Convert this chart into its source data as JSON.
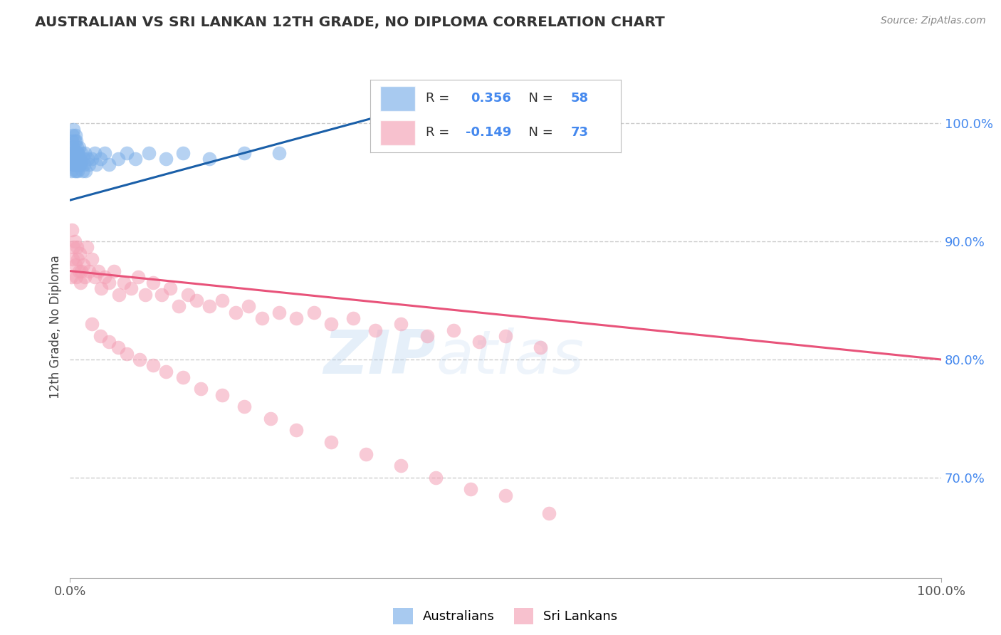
{
  "title": "AUSTRALIAN VS SRI LANKAN 12TH GRADE, NO DIPLOMA CORRELATION CHART",
  "source": "Source: ZipAtlas.com",
  "ylabel": "12th Grade, No Diploma",
  "xlim": [
    0.0,
    1.0
  ],
  "ylim": [
    0.615,
    1.04
  ],
  "yticks": [
    0.7,
    0.8,
    0.9,
    1.0
  ],
  "ytick_labels": [
    "70.0%",
    "80.0%",
    "90.0%",
    "100.0%"
  ],
  "xticks": [
    0.0,
    1.0
  ],
  "xtick_labels": [
    "0.0%",
    "100.0%"
  ],
  "grid_color": "#cccccc",
  "background_color": "#ffffff",
  "australian_color": "#7aaee8",
  "srilanka_color": "#f4a0b5",
  "australian_line_color": "#1a5fa8",
  "srilanka_line_color": "#e8537a",
  "R_australian": 0.356,
  "N_australian": 58,
  "R_srilanka": -0.149,
  "N_srilanka": 73,
  "watermark_zip": "ZIP",
  "watermark_atlas": "atlas",
  "aus_line_x0": 0.0,
  "aus_line_y0": 0.935,
  "aus_line_x1": 0.35,
  "aus_line_y1": 1.005,
  "slk_line_x0": 0.0,
  "slk_line_y0": 0.875,
  "slk_line_x1": 1.0,
  "slk_line_y1": 0.8,
  "australian_x": [
    0.001,
    0.002,
    0.002,
    0.003,
    0.003,
    0.004,
    0.004,
    0.004,
    0.005,
    0.005,
    0.005,
    0.006,
    0.006,
    0.006,
    0.007,
    0.007,
    0.007,
    0.008,
    0.008,
    0.009,
    0.009,
    0.01,
    0.01,
    0.011,
    0.012,
    0.013,
    0.014,
    0.015,
    0.016,
    0.017,
    0.018,
    0.02,
    0.022,
    0.025,
    0.028,
    0.03,
    0.035,
    0.04,
    0.045,
    0.055,
    0.065,
    0.075,
    0.09,
    0.11,
    0.13,
    0.16,
    0.2,
    0.24,
    0.001,
    0.002,
    0.003,
    0.004,
    0.005,
    0.006,
    0.007,
    0.008,
    0.009,
    0.01
  ],
  "australian_y": [
    0.96,
    0.975,
    0.985,
    0.97,
    0.99,
    0.965,
    0.98,
    0.995,
    0.96,
    0.975,
    0.985,
    0.965,
    0.975,
    0.99,
    0.96,
    0.975,
    0.985,
    0.965,
    0.98,
    0.96,
    0.975,
    0.965,
    0.98,
    0.97,
    0.965,
    0.975,
    0.96,
    0.97,
    0.965,
    0.975,
    0.96,
    0.97,
    0.965,
    0.97,
    0.975,
    0.965,
    0.97,
    0.975,
    0.965,
    0.97,
    0.975,
    0.97,
    0.975,
    0.97,
    0.975,
    0.97,
    0.975,
    0.975,
    0.97,
    0.98,
    0.975,
    0.965,
    0.97,
    0.975,
    0.965,
    0.97,
    0.975,
    0.965
  ],
  "srilanka_x": [
    0.001,
    0.002,
    0.003,
    0.004,
    0.005,
    0.006,
    0.007,
    0.008,
    0.009,
    0.01,
    0.011,
    0.012,
    0.013,
    0.015,
    0.017,
    0.019,
    0.022,
    0.025,
    0.028,
    0.032,
    0.036,
    0.04,
    0.045,
    0.05,
    0.056,
    0.062,
    0.07,
    0.078,
    0.086,
    0.095,
    0.105,
    0.115,
    0.125,
    0.135,
    0.145,
    0.16,
    0.175,
    0.19,
    0.205,
    0.22,
    0.24,
    0.26,
    0.28,
    0.3,
    0.325,
    0.35,
    0.38,
    0.41,
    0.44,
    0.47,
    0.5,
    0.54,
    0.025,
    0.035,
    0.045,
    0.055,
    0.065,
    0.08,
    0.095,
    0.11,
    0.13,
    0.15,
    0.175,
    0.2,
    0.23,
    0.26,
    0.3,
    0.34,
    0.38,
    0.42,
    0.46,
    0.5,
    0.55
  ],
  "srilanka_y": [
    0.87,
    0.91,
    0.885,
    0.895,
    0.9,
    0.88,
    0.87,
    0.895,
    0.885,
    0.875,
    0.89,
    0.865,
    0.875,
    0.88,
    0.87,
    0.895,
    0.875,
    0.885,
    0.87,
    0.875,
    0.86,
    0.87,
    0.865,
    0.875,
    0.855,
    0.865,
    0.86,
    0.87,
    0.855,
    0.865,
    0.855,
    0.86,
    0.845,
    0.855,
    0.85,
    0.845,
    0.85,
    0.84,
    0.845,
    0.835,
    0.84,
    0.835,
    0.84,
    0.83,
    0.835,
    0.825,
    0.83,
    0.82,
    0.825,
    0.815,
    0.82,
    0.81,
    0.83,
    0.82,
    0.815,
    0.81,
    0.805,
    0.8,
    0.795,
    0.79,
    0.785,
    0.775,
    0.77,
    0.76,
    0.75,
    0.74,
    0.73,
    0.72,
    0.71,
    0.7,
    0.69,
    0.685,
    0.67
  ]
}
